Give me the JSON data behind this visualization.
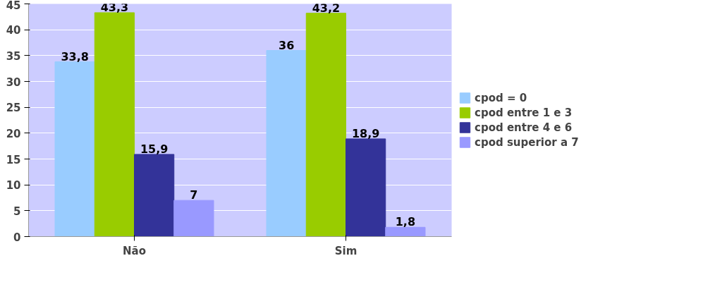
{
  "chart_data": {
    "type": "bar",
    "categories": [
      "Não",
      "Sim"
    ],
    "series": [
      {
        "name": "cpod = 0",
        "color": "#99ccff",
        "values": [
          33.8,
          36
        ],
        "value_labels": [
          "33,8",
          "36"
        ]
      },
      {
        "name": "cpod entre 1 e 3",
        "color": "#99cc00",
        "values": [
          43.3,
          43.2
        ],
        "value_labels": [
          "43,3",
          "43,2"
        ]
      },
      {
        "name": "cpod entre 4 e 6",
        "color": "#333399",
        "values": [
          15.9,
          18.9
        ],
        "value_labels": [
          "15,9",
          "18,9"
        ]
      },
      {
        "name": "cpod superior a 7",
        "color": "#9999ff",
        "values": [
          7,
          1.8
        ],
        "value_labels": [
          "7",
          "1,8"
        ]
      }
    ],
    "ylim": [
      0,
      45
    ],
    "yticks": [
      0,
      5,
      10,
      15,
      20,
      25,
      30,
      35,
      40,
      45
    ],
    "grid": "y",
    "legend": "right"
  }
}
